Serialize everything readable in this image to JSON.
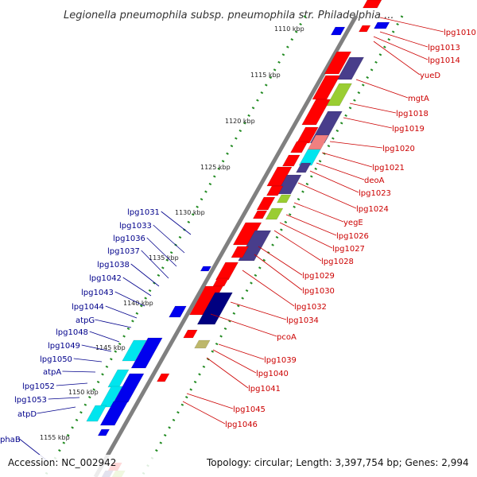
{
  "title": "Legionella pneumophila subsp. pneumophila str. Philadelphia ...",
  "footer": {
    "accession": "Accession: NC_002942",
    "summary": "Topology: circular; Length: 3,397,754 bp; Genes: 2,994"
  },
  "colors": {
    "forward_gene": "#ff0000",
    "reverse_gene": "#0000ee",
    "cyan_gene": "#00e5ee",
    "purple_gene": "#483d8b",
    "green_gene": "#9acd32",
    "pink_gene": "#f08080",
    "backbone": "#808080",
    "tick": "#228b22",
    "right_label": "#cc0000",
    "left_label": "#00008b"
  },
  "kbp_ticks": [
    "1110 kbp",
    "1115 kbp",
    "1120 kbp",
    "1125 kbp",
    "1130 kbp",
    "1135 kbp",
    "1140 kbp",
    "1145 kbp",
    "1150 kbp",
    "1155 kbp"
  ],
  "right_labels": [
    "lpg1010",
    "lpg1013",
    "lpg1014",
    "yueD",
    "mgtA",
    "lpg1018",
    "lpg1019",
    "lpg1020",
    "lpg1021",
    "deoA",
    "lpg1023",
    "lpg1024",
    "yegE",
    "lpg1026",
    "lpg1027",
    "lpg1028",
    "lpg1029",
    "lpg1030",
    "lpg1032",
    "lpg1034",
    "pcoA",
    "lpg1039",
    "lpg1040",
    "lpg1041",
    "lpg1045",
    "lpg1046"
  ],
  "left_labels": [
    "lpg1031",
    "lpg1033",
    "lpg1036",
    "lpg1037",
    "lpg1038",
    "lpg1042",
    "lpg1043",
    "lpg1044",
    "atpG",
    "lpg1048",
    "lpg1049",
    "lpg1050",
    "atpA",
    "lpg1052",
    "lpg1053",
    "atpD",
    "phaB"
  ]
}
